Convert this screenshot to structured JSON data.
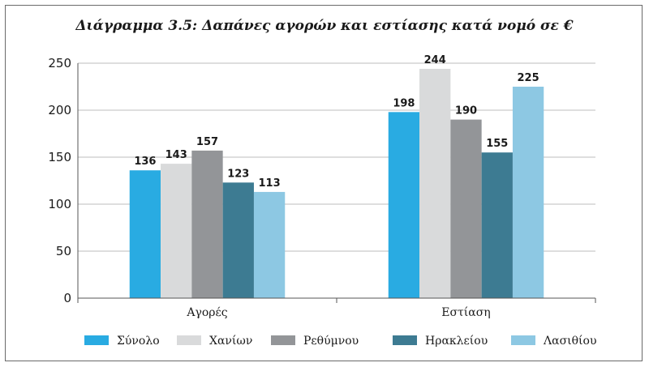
{
  "chart_data": {
    "type": "bar",
    "title": "Διάγραμμα 3.5: Δαπάνες αγορών και εστίασης κατά νομό σε €",
    "categories": [
      "Αγορές",
      "Εστίαση"
    ],
    "ylim": [
      0,
      250
    ],
    "yticks": [
      0,
      50,
      100,
      150,
      200,
      250
    ],
    "grid": true,
    "legend_position": "bottom",
    "series": [
      {
        "name": "Σύνολο",
        "values": [
          136,
          198
        ],
        "color": "#29abe2"
      },
      {
        "name": "Χανίων",
        "values": [
          143,
          244
        ],
        "color": "#d9dadb"
      },
      {
        "name": "Ρεθύμνου",
        "values": [
          157,
          190
        ],
        "color": "#939598"
      },
      {
        "name": "Ηρακλείου",
        "values": [
          123,
          155
        ],
        "color": "#3d7b92"
      },
      {
        "name": "Λασιθίου",
        "values": [
          113,
          225
        ],
        "color": "#8dc8e3"
      }
    ]
  }
}
